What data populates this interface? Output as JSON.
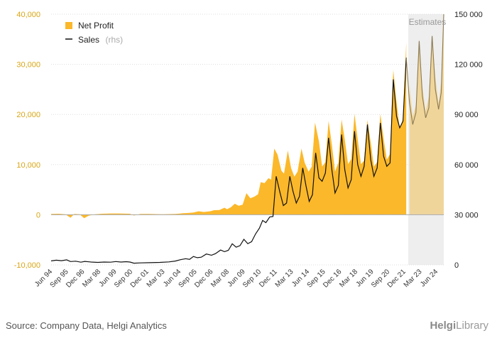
{
  "chart_data": {
    "type": "area",
    "title": "",
    "legend": {
      "placement": "top-left",
      "items": [
        {
          "name": "Net Profit",
          "sub": "",
          "color": "#fbb82a",
          "kind": "area"
        },
        {
          "name": "Sales",
          "sub": "(rhs)",
          "color": "#111111",
          "kind": "line"
        }
      ]
    },
    "estimates_label": "Estimates",
    "estimates_start": 2022.0,
    "x_range": [
      1994.4,
      2024.75
    ],
    "x_ticks": [
      "Jun 94",
      "Sep 95",
      "Dec 96",
      "Mar 98",
      "Jun 99",
      "Sep 00",
      "Dec 01",
      "Mar 03",
      "Jun 04",
      "Sep 05",
      "Dec 06",
      "Mar 08",
      "Jun 09",
      "Sep 10",
      "Dec 11",
      "Mar 13",
      "Jun 14",
      "Sep 15",
      "Dec 16",
      "Mar 18",
      "Jun 19",
      "Sep 20",
      "Dec 21",
      "Mar 23",
      "Jun 24"
    ],
    "y_left": {
      "ticks": [
        "40,000",
        "30,000",
        "20,000",
        "10,000",
        "0",
        "-10,000"
      ],
      "range": [
        -10000,
        40000
      ]
    },
    "y_right": {
      "ticks": [
        "150 000",
        "120 000",
        "90 000",
        "60 000",
        "30 000",
        "0"
      ],
      "range": [
        0,
        150000
      ]
    },
    "series": [
      {
        "name": "Net Profit",
        "axis": "left",
        "points": [
          [
            1994.4,
            150
          ],
          [
            1995.0,
            200
          ],
          [
            1995.5,
            100
          ],
          [
            1995.9,
            -600
          ],
          [
            1996.2,
            150
          ],
          [
            1996.6,
            100
          ],
          [
            1996.95,
            -700
          ],
          [
            1997.3,
            -200
          ],
          [
            1997.8,
            100
          ],
          [
            1998.3,
            200
          ],
          [
            1999.0,
            250
          ],
          [
            1999.6,
            250
          ],
          [
            2000.5,
            200
          ],
          [
            2000.8,
            -150
          ],
          [
            2001.3,
            150
          ],
          [
            2002.0,
            150
          ],
          [
            2003.0,
            100
          ],
          [
            2004.0,
            150
          ],
          [
            2004.6,
            300
          ],
          [
            2005.0,
            350
          ],
          [
            2005.4,
            450
          ],
          [
            2005.8,
            700
          ],
          [
            2006.2,
            550
          ],
          [
            2006.7,
            700
          ],
          [
            2007.0,
            900
          ],
          [
            2007.4,
            950
          ],
          [
            2007.8,
            1400
          ],
          [
            2008.0,
            1100
          ],
          [
            2008.3,
            1500
          ],
          [
            2008.6,
            2200
          ],
          [
            2008.9,
            1800
          ],
          [
            2009.2,
            2000
          ],
          [
            2009.5,
            4300
          ],
          [
            2009.8,
            3300
          ],
          [
            2010.1,
            3600
          ],
          [
            2010.4,
            4100
          ],
          [
            2010.6,
            6500
          ],
          [
            2010.9,
            6300
          ],
          [
            2011.2,
            7300
          ],
          [
            2011.4,
            7000
          ],
          [
            2011.65,
            13200
          ],
          [
            2011.9,
            12000
          ],
          [
            2012.2,
            8800
          ],
          [
            2012.4,
            8200
          ],
          [
            2012.7,
            12800
          ],
          [
            2012.95,
            9300
          ],
          [
            2013.2,
            7600
          ],
          [
            2013.45,
            8600
          ],
          [
            2013.75,
            13200
          ],
          [
            2014.0,
            10400
          ],
          [
            2014.3,
            8600
          ],
          [
            2014.55,
            9600
          ],
          [
            2014.8,
            18400
          ],
          [
            2015.1,
            14600
          ],
          [
            2015.35,
            9600
          ],
          [
            2015.6,
            10500
          ],
          [
            2015.85,
            18700
          ],
          [
            2016.1,
            14000
          ],
          [
            2016.35,
            8600
          ],
          [
            2016.6,
            10400
          ],
          [
            2016.85,
            19000
          ],
          [
            2017.1,
            15000
          ],
          [
            2017.35,
            10100
          ],
          [
            2017.6,
            11100
          ],
          [
            2017.85,
            20100
          ],
          [
            2018.1,
            15000
          ],
          [
            2018.35,
            10100
          ],
          [
            2018.6,
            10800
          ],
          [
            2018.85,
            18900
          ],
          [
            2019.1,
            14500
          ],
          [
            2019.35,
            9600
          ],
          [
            2019.6,
            10500
          ],
          [
            2019.85,
            20100
          ],
          [
            2020.1,
            15200
          ],
          [
            2020.35,
            11000
          ],
          [
            2020.6,
            12100
          ],
          [
            2020.85,
            28900
          ],
          [
            2021.1,
            22500
          ],
          [
            2021.35,
            17000
          ],
          [
            2021.6,
            19200
          ],
          [
            2021.85,
            34400
          ],
          [
            2022.1,
            25800
          ],
          [
            2022.35,
            19600
          ],
          [
            2022.6,
            21900
          ],
          [
            2022.85,
            33700
          ],
          [
            2023.1,
            25600
          ],
          [
            2023.35,
            20600
          ],
          [
            2023.6,
            23600
          ],
          [
            2023.85,
            35600
          ],
          [
            2024.1,
            27300
          ],
          [
            2024.35,
            22200
          ],
          [
            2024.55,
            26500
          ],
          [
            2024.75,
            38800
          ]
        ]
      },
      {
        "name": "Sales",
        "axis": "right",
        "points": [
          [
            1994.4,
            2400
          ],
          [
            1994.8,
            2800
          ],
          [
            1995.2,
            2500
          ],
          [
            1995.6,
            3000
          ],
          [
            1995.9,
            2000
          ],
          [
            1996.3,
            2200
          ],
          [
            1996.7,
            1600
          ],
          [
            1997.0,
            2100
          ],
          [
            1997.5,
            1700
          ],
          [
            1998.0,
            1500
          ],
          [
            1998.5,
            1700
          ],
          [
            1999.0,
            1600
          ],
          [
            1999.4,
            2000
          ],
          [
            1999.8,
            1700
          ],
          [
            2000.2,
            1900
          ],
          [
            2000.5,
            1700
          ],
          [
            2000.8,
            1000
          ],
          [
            2001.3,
            1200
          ],
          [
            2002.0,
            1300
          ],
          [
            2002.8,
            1500
          ],
          [
            2003.5,
            1800
          ],
          [
            2004.0,
            2300
          ],
          [
            2004.4,
            3100
          ],
          [
            2004.8,
            3700
          ],
          [
            2005.1,
            3300
          ],
          [
            2005.4,
            5000
          ],
          [
            2005.7,
            4300
          ],
          [
            2006.0,
            4600
          ],
          [
            2006.4,
            6500
          ],
          [
            2006.8,
            5800
          ],
          [
            2007.1,
            6700
          ],
          [
            2007.5,
            8900
          ],
          [
            2007.8,
            7900
          ],
          [
            2008.1,
            8700
          ],
          [
            2008.4,
            12600
          ],
          [
            2008.7,
            10600
          ],
          [
            2009.0,
            11500
          ],
          [
            2009.3,
            15300
          ],
          [
            2009.6,
            12700
          ],
          [
            2009.9,
            13900
          ],
          [
            2010.2,
            18500
          ],
          [
            2010.5,
            22000
          ],
          [
            2010.75,
            26600
          ],
          [
            2011.0,
            25300
          ],
          [
            2011.3,
            28700
          ],
          [
            2011.55,
            29000
          ],
          [
            2011.8,
            53000
          ],
          [
            2012.1,
            43000
          ],
          [
            2012.35,
            35500
          ],
          [
            2012.6,
            37000
          ],
          [
            2012.85,
            53000
          ],
          [
            2013.1,
            44000
          ],
          [
            2013.35,
            37000
          ],
          [
            2013.6,
            41000
          ],
          [
            2013.85,
            58000
          ],
          [
            2014.1,
            47500
          ],
          [
            2014.35,
            38000
          ],
          [
            2014.6,
            42000
          ],
          [
            2014.85,
            67000
          ],
          [
            2015.1,
            52000
          ],
          [
            2015.35,
            50000
          ],
          [
            2015.6,
            55000
          ],
          [
            2015.85,
            76000
          ],
          [
            2016.1,
            57000
          ],
          [
            2016.35,
            43000
          ],
          [
            2016.6,
            47500
          ],
          [
            2016.85,
            78000
          ],
          [
            2017.1,
            57000
          ],
          [
            2017.35,
            46000
          ],
          [
            2017.6,
            51000
          ],
          [
            2017.85,
            80000
          ],
          [
            2018.1,
            60000
          ],
          [
            2018.35,
            53000
          ],
          [
            2018.6,
            59000
          ],
          [
            2018.85,
            84000
          ],
          [
            2019.1,
            63000
          ],
          [
            2019.35,
            53000
          ],
          [
            2019.6,
            58000
          ],
          [
            2019.85,
            85000
          ],
          [
            2020.1,
            65000
          ],
          [
            2020.35,
            59000
          ],
          [
            2020.6,
            61000
          ],
          [
            2020.85,
            111000
          ],
          [
            2021.1,
            89000
          ],
          [
            2021.35,
            82000
          ],
          [
            2021.6,
            86000
          ],
          [
            2021.85,
            124000
          ],
          [
            2022.1,
            97000
          ],
          [
            2022.35,
            84000
          ],
          [
            2022.6,
            91000
          ],
          [
            2022.85,
            134000
          ],
          [
            2023.1,
            101000
          ],
          [
            2023.35,
            88000
          ],
          [
            2023.6,
            94000
          ],
          [
            2023.85,
            137000
          ],
          [
            2024.1,
            105000
          ],
          [
            2024.35,
            93000
          ],
          [
            2024.55,
            103000
          ],
          [
            2024.75,
            150000
          ]
        ]
      }
    ]
  },
  "footer": {
    "source": "Source: Company Data, Helgi Analytics",
    "brand_bold": "Helgi",
    "brand_rest": "Library"
  }
}
